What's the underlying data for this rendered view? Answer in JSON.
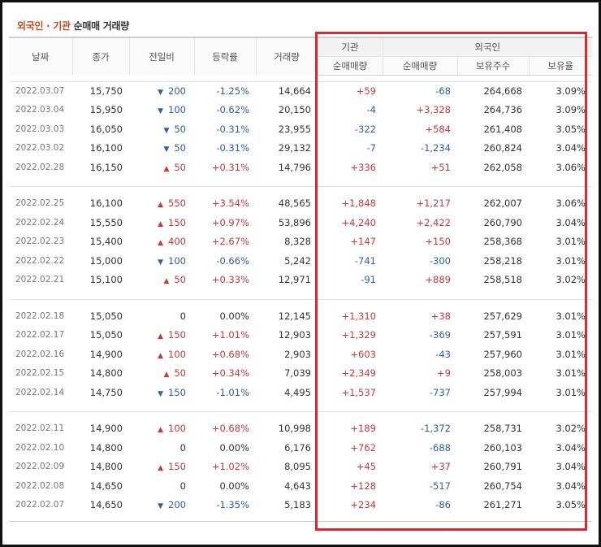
{
  "title": {
    "part1": "외국인 · 기관",
    "part2": "순매매 거래량"
  },
  "header": {
    "date": "날짜",
    "close": "종가",
    "change": "전일비",
    "rate": "등락률",
    "volume": "거래량",
    "institution": "기관",
    "foreign": "외국인",
    "inst_net": "순매매량",
    "foreign_net": "순매매량",
    "foreign_holdings": "보유주수",
    "foreign_ratio": "보유율"
  },
  "colors": {
    "up": "#c33a3a",
    "down": "#2e5fa8",
    "highlight_border": "#d62b36",
    "title_accent": "#c34b1f"
  },
  "groups": [
    [
      {
        "date": "2022.03.07",
        "close": "15,750",
        "dir": "down",
        "change": "200",
        "rate": "-1.25%",
        "volume": "14,664",
        "inst": "+59",
        "foreign": "-68",
        "holdings": "264,668",
        "ratio": "3.09%"
      },
      {
        "date": "2022.03.04",
        "close": "15,950",
        "dir": "down",
        "change": "100",
        "rate": "-0.62%",
        "volume": "20,150",
        "inst": "-4",
        "foreign": "+3,328",
        "holdings": "264,736",
        "ratio": "3.09%"
      },
      {
        "date": "2022.03.03",
        "close": "16,050",
        "dir": "down",
        "change": "50",
        "rate": "-0.31%",
        "volume": "23,955",
        "inst": "-322",
        "foreign": "+584",
        "holdings": "261,408",
        "ratio": "3.05%"
      },
      {
        "date": "2022.03.02",
        "close": "16,100",
        "dir": "down",
        "change": "50",
        "rate": "-0.31%",
        "volume": "29,132",
        "inst": "-7",
        "foreign": "-1,234",
        "holdings": "260,824",
        "ratio": "3.04%"
      },
      {
        "date": "2022.02.28",
        "close": "16,150",
        "dir": "up",
        "change": "50",
        "rate": "+0.31%",
        "volume": "14,796",
        "inst": "+336",
        "foreign": "+51",
        "holdings": "262,058",
        "ratio": "3.06%"
      }
    ],
    [
      {
        "date": "2022.02.25",
        "close": "16,100",
        "dir": "up",
        "change": "550",
        "rate": "+3.54%",
        "volume": "48,565",
        "inst": "+1,848",
        "foreign": "+1,217",
        "holdings": "262,007",
        "ratio": "3.06%"
      },
      {
        "date": "2022.02.24",
        "close": "15,550",
        "dir": "up",
        "change": "150",
        "rate": "+0.97%",
        "volume": "53,896",
        "inst": "+4,240",
        "foreign": "+2,422",
        "holdings": "260,790",
        "ratio": "3.04%"
      },
      {
        "date": "2022.02.23",
        "close": "15,400",
        "dir": "up",
        "change": "400",
        "rate": "+2.67%",
        "volume": "8,328",
        "inst": "+147",
        "foreign": "+150",
        "holdings": "258,368",
        "ratio": "3.01%"
      },
      {
        "date": "2022.02.22",
        "close": "15,000",
        "dir": "down",
        "change": "100",
        "rate": "-0.66%",
        "volume": "5,242",
        "inst": "-741",
        "foreign": "-300",
        "holdings": "258,218",
        "ratio": "3.01%"
      },
      {
        "date": "2022.02.21",
        "close": "15,100",
        "dir": "up",
        "change": "50",
        "rate": "+0.33%",
        "volume": "12,971",
        "inst": "-91",
        "foreign": "+889",
        "holdings": "258,518",
        "ratio": "3.02%"
      }
    ],
    [
      {
        "date": "2022.02.18",
        "close": "15,050",
        "dir": "flat",
        "change": "0",
        "rate": "0.00%",
        "volume": "12,145",
        "inst": "+1,310",
        "foreign": "+38",
        "holdings": "257,629",
        "ratio": "3.01%"
      },
      {
        "date": "2022.02.17",
        "close": "15,050",
        "dir": "up",
        "change": "150",
        "rate": "+1.01%",
        "volume": "12,903",
        "inst": "+1,329",
        "foreign": "-369",
        "holdings": "257,591",
        "ratio": "3.01%"
      },
      {
        "date": "2022.02.16",
        "close": "14,900",
        "dir": "up",
        "change": "100",
        "rate": "+0.68%",
        "volume": "2,903",
        "inst": "+603",
        "foreign": "-43",
        "holdings": "257,960",
        "ratio": "3.01%"
      },
      {
        "date": "2022.02.15",
        "close": "14,800",
        "dir": "up",
        "change": "50",
        "rate": "+0.34%",
        "volume": "7,039",
        "inst": "+2,349",
        "foreign": "+9",
        "holdings": "258,003",
        "ratio": "3.01%"
      },
      {
        "date": "2022.02.14",
        "close": "14,750",
        "dir": "down",
        "change": "150",
        "rate": "-1.01%",
        "volume": "4,495",
        "inst": "+1,537",
        "foreign": "-737",
        "holdings": "257,994",
        "ratio": "3.01%"
      }
    ],
    [
      {
        "date": "2022.02.11",
        "close": "14,900",
        "dir": "up",
        "change": "100",
        "rate": "+0.68%",
        "volume": "10,998",
        "inst": "+189",
        "foreign": "-1,372",
        "holdings": "258,731",
        "ratio": "3.02%"
      },
      {
        "date": "2022.02.10",
        "close": "14,800",
        "dir": "flat",
        "change": "0",
        "rate": "0.00%",
        "volume": "6,176",
        "inst": "+762",
        "foreign": "-688",
        "holdings": "260,103",
        "ratio": "3.04%"
      },
      {
        "date": "2022.02.09",
        "close": "14,800",
        "dir": "up",
        "change": "150",
        "rate": "+1.02%",
        "volume": "8,095",
        "inst": "+45",
        "foreign": "+37",
        "holdings": "260,791",
        "ratio": "3.04%"
      },
      {
        "date": "2022.02.08",
        "close": "14,650",
        "dir": "flat",
        "change": "0",
        "rate": "0.00%",
        "volume": "4,643",
        "inst": "+128",
        "foreign": "-517",
        "holdings": "260,754",
        "ratio": "3.04%"
      },
      {
        "date": "2022.02.07",
        "close": "14,650",
        "dir": "down",
        "change": "200",
        "rate": "-1.35%",
        "volume": "5,183",
        "inst": "+234",
        "foreign": "-86",
        "holdings": "261,271",
        "ratio": "3.05%"
      }
    ]
  ]
}
